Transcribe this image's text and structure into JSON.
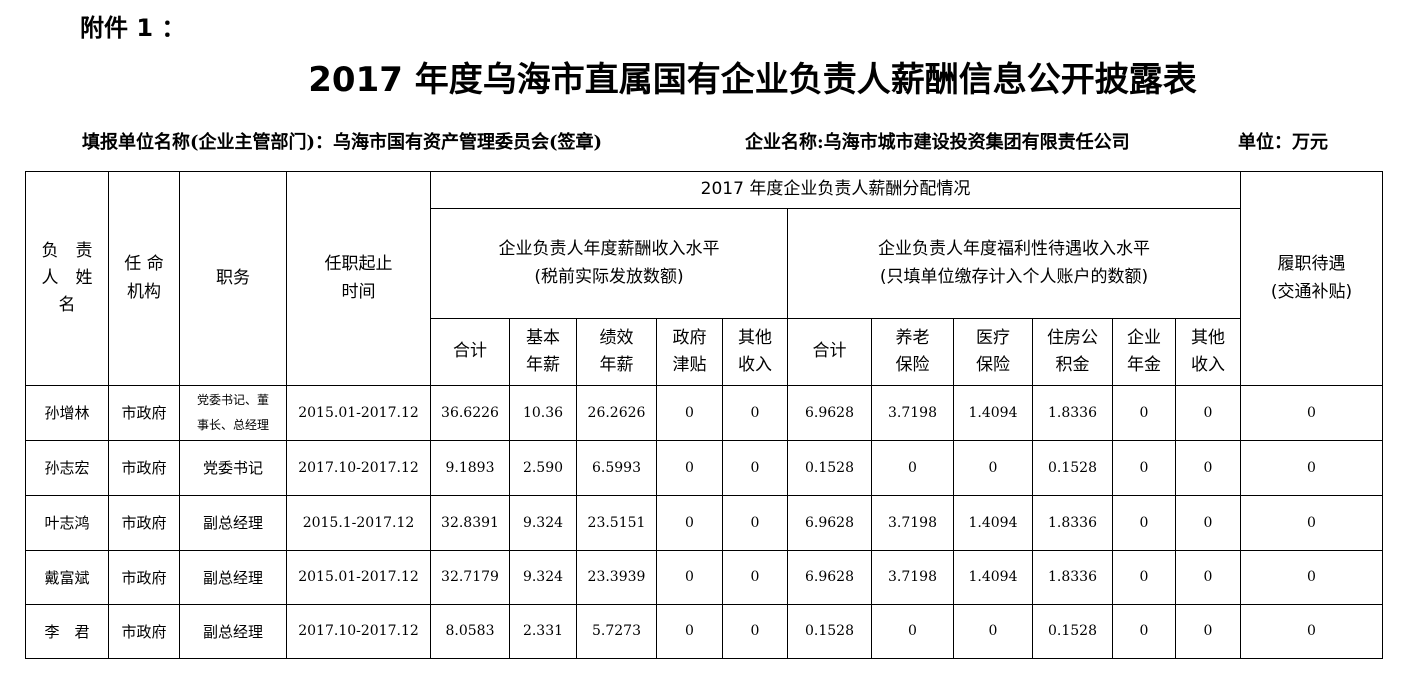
{
  "attachment_label": "附件 1 ：",
  "title": "2017 年度乌海市直属国有企业负责人薪酬信息公开披露表",
  "meta": {
    "reporting_unit": "填报单位名称(企业主管部门)：乌海市国有资产管理委员会(签章)",
    "company": "企业名称:乌海市城市建设投资集团有限责任公司",
    "unit": "单位：万元"
  },
  "headers": {
    "name": "负　责\n人　姓\n名",
    "appointing_body": "任 命\n机构",
    "position": "职务",
    "term": "任职起止\n时间",
    "distribution": "2017 年度企业负责人薪酬分配情况",
    "salary_group": "企业负责人年度薪酬收入水平\n(税前实际发放数额)",
    "welfare_group": "企业负责人年度福利性待遇收入水平\n(只填单位缴存计入个人账户的数额)",
    "duty_allowance": "履职待遇\n(交通补贴)",
    "salary_cols": [
      "合计",
      "基本\n年薪",
      "绩效\n年薪",
      "政府\n津贴",
      "其他\n收入"
    ],
    "welfare_cols": [
      "合计",
      "养老\n保险",
      "医疗\n保险",
      "住房公\n积金",
      "企业\n年金",
      "其他\n收入"
    ]
  },
  "rows": [
    [
      "孙增林",
      "市政府",
      "党委书记、董\n事长、总经理",
      "2015.01-2017.12",
      "36.6226",
      "10.36",
      "26.2626",
      "0",
      "0",
      "6.9628",
      "3.7198",
      "1.4094",
      "1.8336",
      "0",
      "0",
      "0"
    ],
    [
      "孙志宏",
      "市政府",
      "党委书记",
      "2017.10-2017.12",
      "9.1893",
      "2.590",
      "6.5993",
      "0",
      "0",
      "0.1528",
      "0",
      "0",
      "0.1528",
      "0",
      "0",
      "0"
    ],
    [
      "叶志鸿",
      "市政府",
      "副总经理",
      "2015.1-2017.12",
      "32.8391",
      "9.324",
      "23.5151",
      "0",
      "0",
      "6.9628",
      "3.7198",
      "1.4094",
      "1.8336",
      "0",
      "0",
      "0"
    ],
    [
      "戴富斌",
      "市政府",
      "副总经理",
      "2015.01-2017.12",
      "32.7179",
      "9.324",
      "23.3939",
      "0",
      "0",
      "6.9628",
      "3.7198",
      "1.4094",
      "1.8336",
      "0",
      "0",
      "0"
    ],
    [
      "李　君",
      "市政府",
      "副总经理",
      "2017.10-2017.12",
      "8.0583",
      "2.331",
      "5.7273",
      "0",
      "0",
      "0.1528",
      "0",
      "0",
      "0.1528",
      "0",
      "0",
      "0"
    ]
  ]
}
